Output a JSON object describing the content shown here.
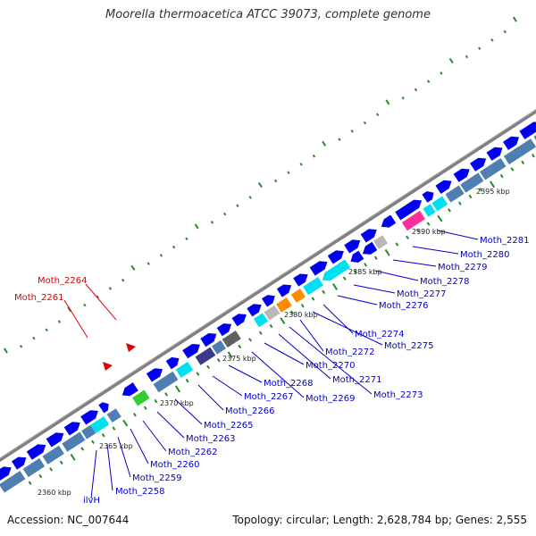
{
  "title": "Moorella thermoacetica ATCC 39073, complete genome",
  "footer": {
    "accession": "Accession: NC_007644",
    "topology": "Topology: circular; Length: 2,628,784 bp; Genes: 2,555"
  },
  "colors": {
    "backbone": "#808080",
    "cds_blue": "#0000ee",
    "steel": "#4f7fb0",
    "cyan": "#00e0f0",
    "orange": "#ff8c00",
    "magenta": "#ff2d9a",
    "green": "#33cc33",
    "dark_purple": "#3d3a8a",
    "dark_gray": "#606060",
    "light_gray": "#b8b8b8",
    "label_blue": "#0000cc",
    "label_red": "#dd0000",
    "tick_green": "#2a8a2a"
  },
  "scale_labels": [
    "2360 kbp",
    "2365 kbp",
    "2370 kbp",
    "2375 kbp",
    "2380 kbp",
    "2385 kbp",
    "2390 kbp",
    "2395 kbp"
  ],
  "red_labels": [
    "Moth_2264",
    "Moth_2261"
  ],
  "gene_labels": [
    "ilvH",
    "Moth_2258",
    "Moth_2259",
    "Moth_2260",
    "Moth_2262",
    "Moth_2263",
    "Moth_2265",
    "Moth_2266",
    "Moth_2267",
    "Moth_2268",
    "Moth_2269",
    "Moth_2270",
    "Moth_2271",
    "Moth_2273",
    "Moth_2272",
    "Moth_2275",
    "Moth_2274",
    "Moth_2276",
    "Moth_2277",
    "Moth_2278",
    "Moth_2279",
    "Moth_2280",
    "Moth_2281"
  ]
}
